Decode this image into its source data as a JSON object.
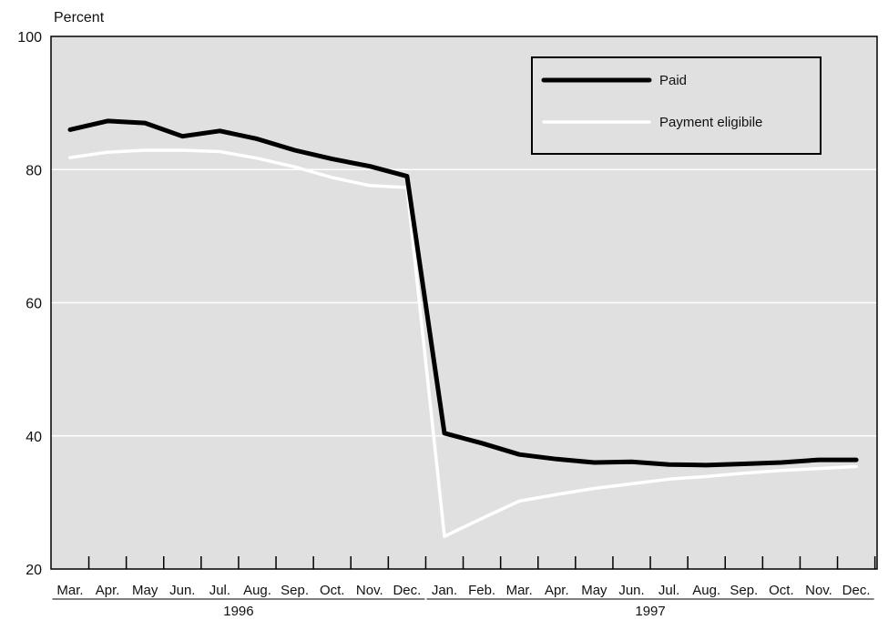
{
  "chart_data": {
    "type": "line",
    "ylabel": "Percent",
    "ylim": [
      20,
      100
    ],
    "yticks": [
      20,
      40,
      60,
      80,
      100
    ],
    "grid": "horizontal",
    "legend_position": "top-right",
    "x": [
      "Mar.",
      "Apr.",
      "May",
      "Jun.",
      "Jul.",
      "Aug.",
      "Sep.",
      "Oct.",
      "Nov.",
      "Dec.",
      "Jan.",
      "Feb.",
      "Mar.",
      "Apr.",
      "May",
      "Jun.",
      "Jul.",
      "Aug.",
      "Sep.",
      "Oct.",
      "Nov.",
      "Dec."
    ],
    "year_groups": [
      {
        "label": "1996",
        "start": 0,
        "end": 9
      },
      {
        "label": "1997",
        "start": 10,
        "end": 21
      }
    ],
    "series": [
      {
        "name": "Paid",
        "color": "#000000",
        "values": [
          86.0,
          87.3,
          87.0,
          85.0,
          85.8,
          84.6,
          82.9,
          81.6,
          80.5,
          79.0,
          40.4,
          38.9,
          37.2,
          36.5,
          36.0,
          36.1,
          35.7,
          35.6,
          35.8,
          36.0,
          36.4,
          36.4
        ]
      },
      {
        "name": "Payment eligibile",
        "color": "#ffffff",
        "values": [
          81.8,
          82.6,
          82.9,
          82.9,
          82.7,
          81.7,
          80.4,
          78.8,
          77.6,
          77.3,
          24.9,
          27.6,
          30.2,
          31.2,
          32.1,
          32.8,
          33.5,
          33.9,
          34.4,
          34.8,
          35.1,
          35.4
        ]
      }
    ]
  },
  "plot_background": "#e0e0e0"
}
